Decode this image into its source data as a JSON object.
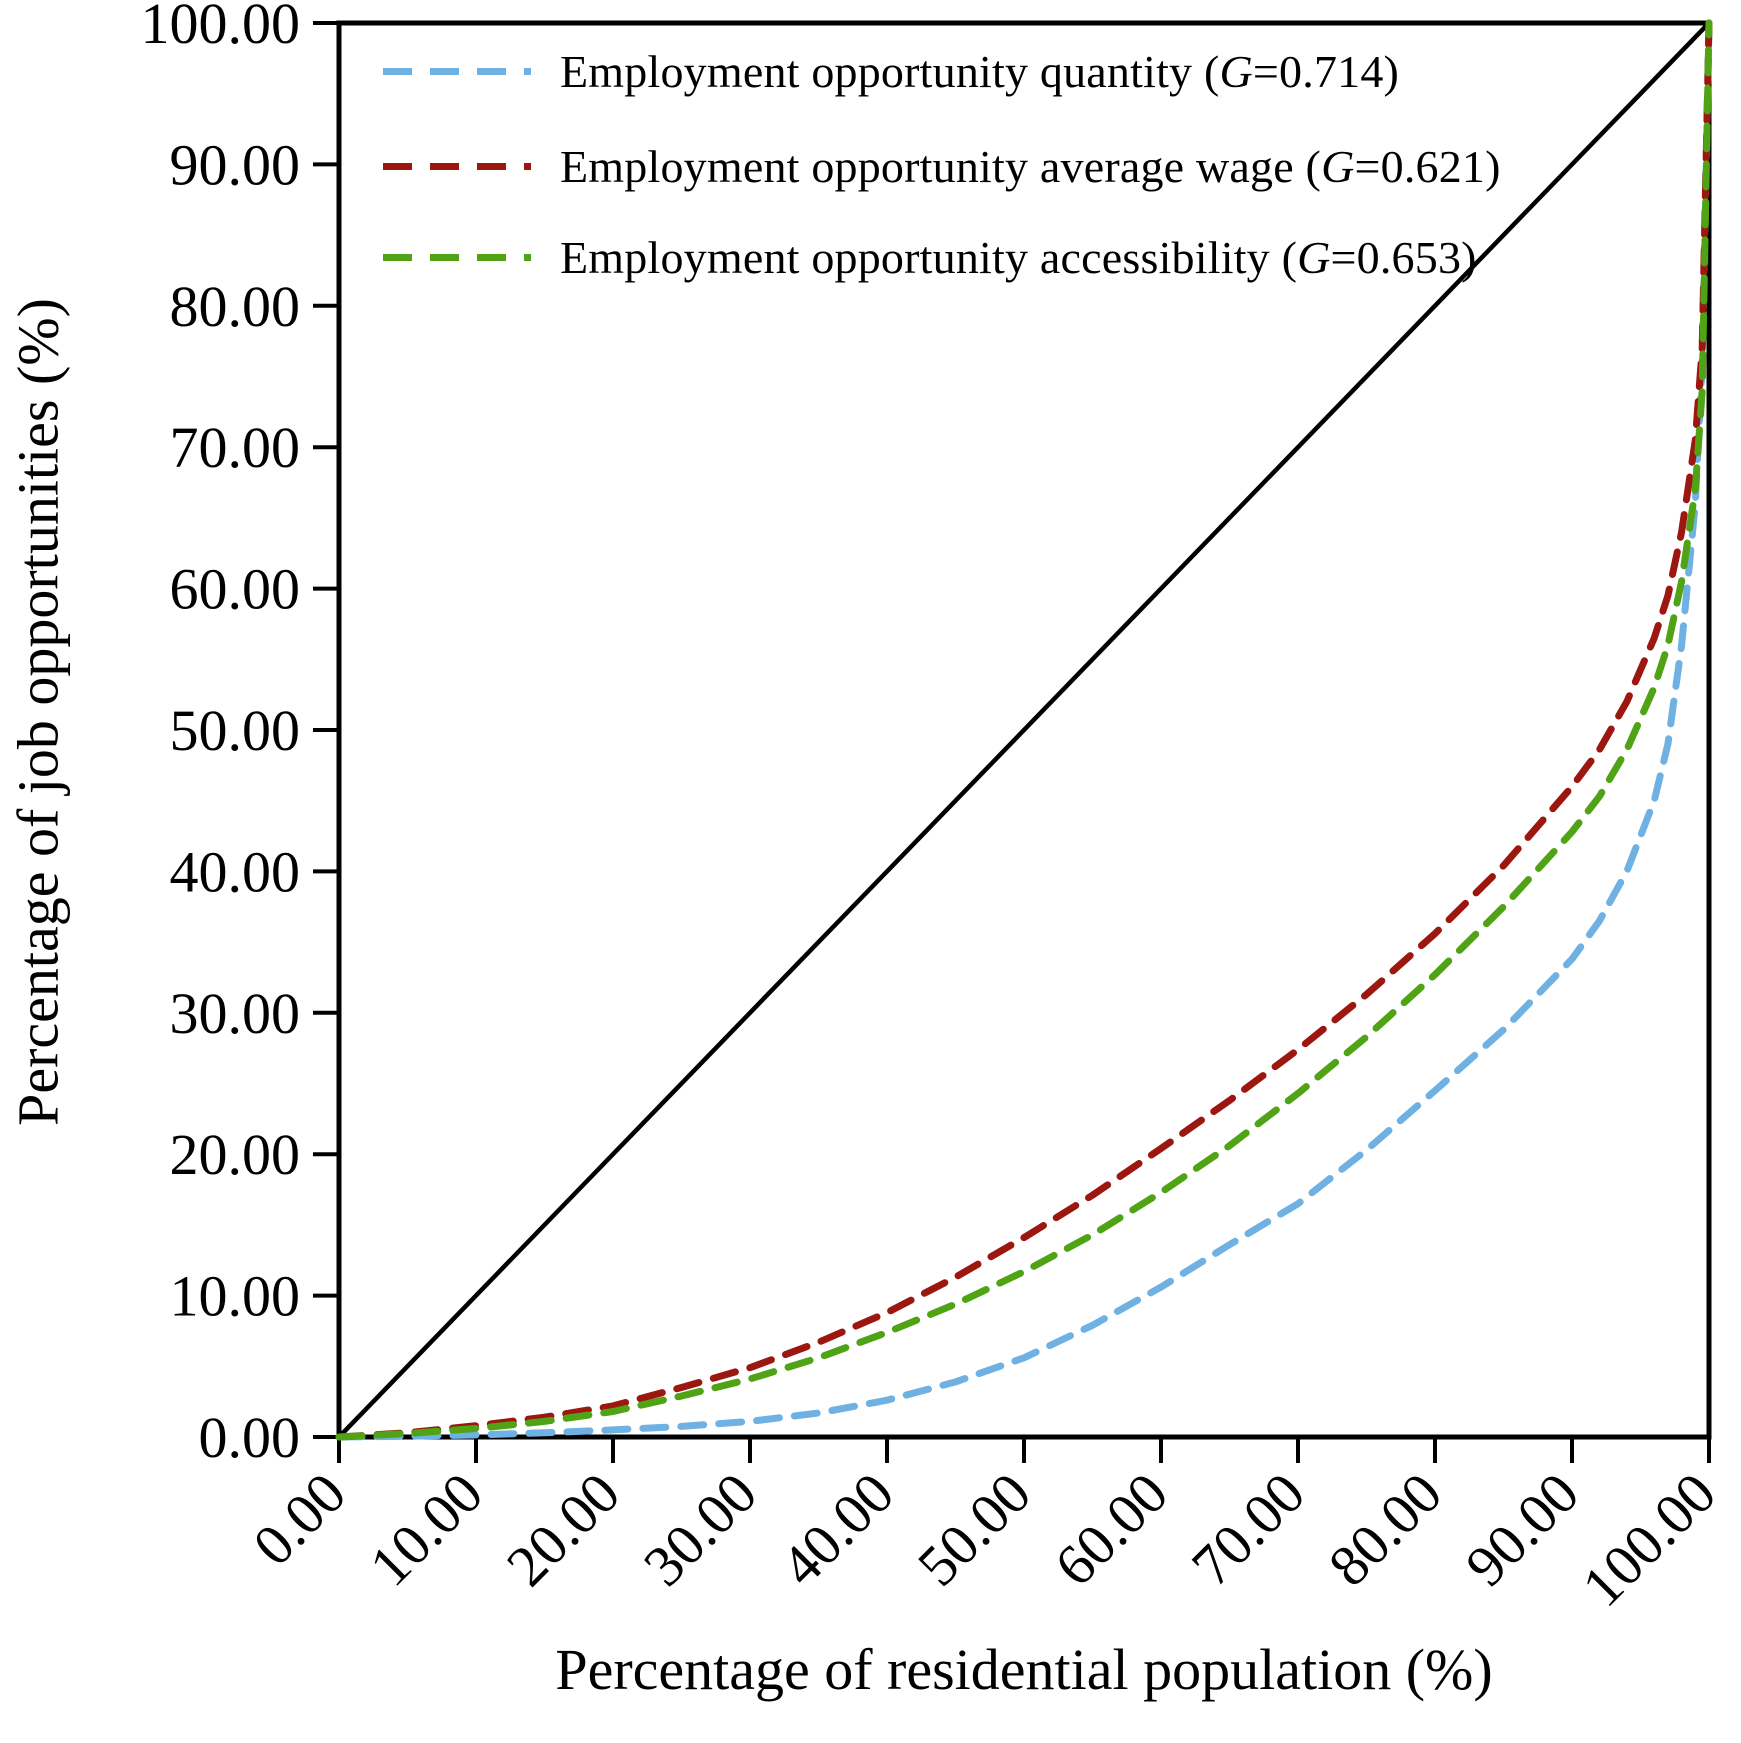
{
  "figure": {
    "y_axis_title": "Percentage of job opportunities (%)",
    "x_axis_title": "Percentage of residential population (%)",
    "background_color": "#ffffff",
    "axis_color": "#000000"
  },
  "legend": {
    "items": [
      {
        "name": "employment-opportunity-quantity",
        "prefix": "Employment opportunity quantity (",
        "gini_symbol": "G",
        "suffix": "=0.714)",
        "color": "#70B1E3",
        "line_style": "dashed"
      },
      {
        "name": "employment-opportunity-average-wage",
        "prefix": "Employment opportunity average wage (",
        "gini_symbol": "G",
        "suffix": "=0.621)",
        "color": "#9B1710",
        "line_style": "dashed"
      },
      {
        "name": "employment-opportunity-accessibility",
        "prefix": "Employment opportunity accessibility (",
        "gini_symbol": "G",
        "suffix": "=0.653)",
        "color": "#4FA314",
        "line_style": "dashed"
      }
    ]
  },
  "chart_data": {
    "type": "line",
    "title": "",
    "xlabel": "Percentage of residential population (%)",
    "ylabel": "Percentage of job opportunities (%)",
    "xlim": [
      0,
      100
    ],
    "ylim": [
      0,
      100
    ],
    "grid": false,
    "legend_position": "upper-left-inside",
    "x_ticks": [
      "0.00",
      "10.00",
      "20.00",
      "30.00",
      "40.00",
      "50.00",
      "60.00",
      "70.00",
      "80.00",
      "90.00",
      "100.00"
    ],
    "y_ticks": [
      "0.00",
      "10.00",
      "20.00",
      "30.00",
      "40.00",
      "50.00",
      "60.00",
      "70.00",
      "80.00",
      "90.00",
      "100.00"
    ],
    "equality_line": {
      "name": "line-of-equality",
      "color": "#000000",
      "style": "solid",
      "x": [
        0,
        100
      ],
      "y": [
        0,
        100
      ]
    },
    "series": [
      {
        "name": "Employment opportunity quantity",
        "gini": 0.714,
        "color": "#70B1E3",
        "style": "dashed",
        "x": [
          0,
          5,
          10,
          15,
          20,
          25,
          30,
          35,
          40,
          45,
          50,
          55,
          60,
          65,
          70,
          75,
          80,
          85,
          90,
          92,
          94,
          96,
          97,
          98,
          99,
          99.5,
          100
        ],
        "y": [
          0,
          0.05,
          0.15,
          0.3,
          0.5,
          0.75,
          1.1,
          1.7,
          2.6,
          3.9,
          5.6,
          7.9,
          10.6,
          13.6,
          16.5,
          20.3,
          24.5,
          28.8,
          33.8,
          36.5,
          40,
          45,
          49,
          56,
          66,
          76,
          100
        ]
      },
      {
        "name": "Employment opportunity average wage",
        "gini": 0.621,
        "color": "#9B1710",
        "style": "dashed",
        "x": [
          0,
          5,
          10,
          15,
          20,
          25,
          30,
          35,
          40,
          45,
          50,
          55,
          60,
          65,
          70,
          75,
          80,
          85,
          90,
          92,
          94,
          96,
          97,
          98,
          99,
          99.5,
          100
        ],
        "y": [
          0,
          0.3,
          0.8,
          1.4,
          2.2,
          3.5,
          4.9,
          6.7,
          8.8,
          11.3,
          14.1,
          17.1,
          20.4,
          23.8,
          27.4,
          31.3,
          35.6,
          40.4,
          46,
          48.6,
          52,
          56.5,
          59.5,
          64,
          70.5,
          77,
          100
        ]
      },
      {
        "name": "Employment opportunity accessibility",
        "gini": 0.653,
        "color": "#4FA314",
        "style": "dashed",
        "x": [
          0,
          5,
          10,
          15,
          20,
          25,
          30,
          35,
          40,
          45,
          50,
          55,
          60,
          65,
          70,
          75,
          80,
          85,
          90,
          92,
          94,
          96,
          97,
          98,
          99,
          99.5,
          100
        ],
        "y": [
          0,
          0.25,
          0.6,
          1.1,
          1.8,
          2.9,
          4.1,
          5.6,
          7.4,
          9.4,
          11.7,
          14.3,
          17.3,
          20.6,
          24.3,
          28.3,
          32.7,
          37.5,
          42.8,
          45.3,
          48.6,
          53,
          56,
          60.5,
          67,
          74,
          100
        ]
      }
    ]
  }
}
